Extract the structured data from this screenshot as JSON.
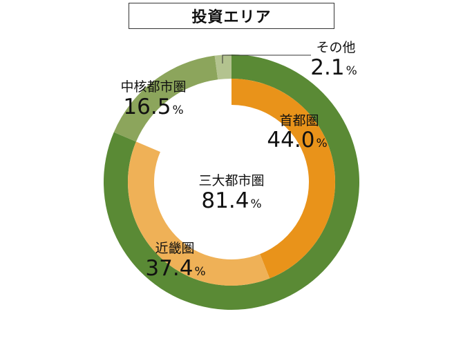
{
  "chart_data": {
    "type": "pie",
    "title": "投資エリア",
    "legend": "none",
    "percent_sign": "%",
    "rings": [
      {
        "ring": "outer",
        "slices": [
          {
            "label": "三大都市圏",
            "value": 81.4,
            "color": "#5a8a35"
          },
          {
            "label": "中核都市圏",
            "value": 16.5,
            "color": "#8ca55c"
          },
          {
            "label": "その他",
            "value": 2.1,
            "color": "#b3c38f"
          }
        ]
      },
      {
        "ring": "inner",
        "slices": [
          {
            "label": "首都圏",
            "value": 44.0,
            "color": "#e9931a"
          },
          {
            "label": "近畿圏",
            "value": 37.4,
            "color": "#efb157"
          }
        ]
      }
    ],
    "labels": [
      {
        "name": "首都圏",
        "value": "44.0"
      },
      {
        "name": "近畿圏",
        "value": "37.4"
      },
      {
        "name": "中核都市圏",
        "value": "16.5"
      },
      {
        "name": "その他",
        "value": "2.1"
      },
      {
        "name": "三大都市圏",
        "value": "81.4"
      }
    ]
  }
}
